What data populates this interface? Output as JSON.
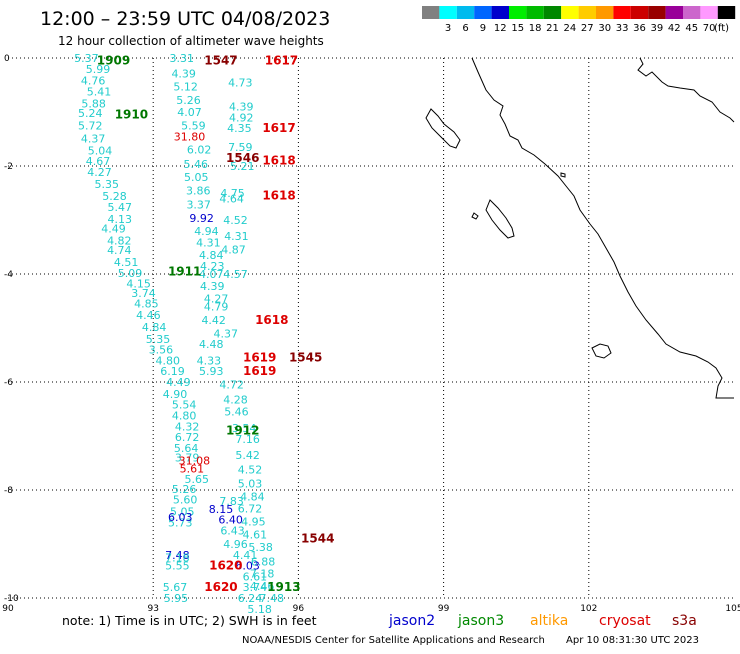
{
  "header": {
    "title": "12:00 – 23:59 UTC 04/08/2023",
    "subtitle": "12 hour collection of altimeter wave heights"
  },
  "legend": {
    "unit": "(ft)",
    "bins": [
      {
        "label": "",
        "color": "#808080"
      },
      {
        "label": "3",
        "color": "#00ffff"
      },
      {
        "label": "6",
        "color": "#00bbee"
      },
      {
        "label": "9",
        "color": "#0066ff"
      },
      {
        "label": "12",
        "color": "#0000cc"
      },
      {
        "label": "15",
        "color": "#00ee00"
      },
      {
        "label": "18",
        "color": "#00bb00"
      },
      {
        "label": "21",
        "color": "#008800"
      },
      {
        "label": "24",
        "color": "#ffff00"
      },
      {
        "label": "27",
        "color": "#ffcc00"
      },
      {
        "label": "30",
        "color": "#ff9900"
      },
      {
        "label": "33",
        "color": "#ff0000"
      },
      {
        "label": "36",
        "color": "#cc0000"
      },
      {
        "label": "39",
        "color": "#990000"
      },
      {
        "label": "42",
        "color": "#990099"
      },
      {
        "label": "45",
        "color": "#cc66cc"
      },
      {
        "label": "70",
        "color": "#ff99ff"
      },
      {
        "label": "",
        "color": "#000000"
      }
    ]
  },
  "axes": {
    "lon_ticks": [
      "90",
      "93",
      "96",
      "99",
      "102",
      "105"
    ],
    "lat_ticks": [
      "0",
      "-2",
      "-4",
      "-6",
      "-8",
      "-10"
    ]
  },
  "observations": [
    {
      "lon": 91.62,
      "lat": 0.0,
      "text": "5.37",
      "color": "#22cccc"
    },
    {
      "lon": 91.86,
      "lat": -0.2,
      "text": "5.99",
      "color": "#22cccc"
    },
    {
      "lon": 91.76,
      "lat": -0.42,
      "text": "4.76",
      "color": "#22cccc"
    },
    {
      "lon": 91.88,
      "lat": -0.62,
      "text": "5.41",
      "color": "#22cccc"
    },
    {
      "lon": 91.77,
      "lat": -0.84,
      "text": "5.88",
      "color": "#22cccc"
    },
    {
      "lon": 91.7,
      "lat": -1.02,
      "text": "5.24",
      "color": "#22cccc"
    },
    {
      "lon": 91.7,
      "lat": -1.25,
      "text": "5.72",
      "color": "#22cccc"
    },
    {
      "lon": 91.76,
      "lat": -1.49,
      "text": "4.37",
      "color": "#22cccc"
    },
    {
      "lon": 91.9,
      "lat": -1.71,
      "text": "5.04",
      "color": "#22cccc"
    },
    {
      "lon": 91.86,
      "lat": -1.91,
      "text": "4.67",
      "color": "#22cccc"
    },
    {
      "lon": 91.89,
      "lat": -2.11,
      "text": "4.27",
      "color": "#22cccc"
    },
    {
      "lon": 92.04,
      "lat": -2.33,
      "text": "5.35",
      "color": "#22cccc"
    },
    {
      "lon": 92.2,
      "lat": -2.56,
      "text": "5.28",
      "color": "#22cccc"
    },
    {
      "lon": 92.31,
      "lat": -2.76,
      "text": "5.47",
      "color": "#22cccc"
    },
    {
      "lon": 92.31,
      "lat": -2.98,
      "text": "4.13",
      "color": "#22cccc"
    },
    {
      "lon": 92.18,
      "lat": -3.16,
      "text": "4.49",
      "color": "#22cccc"
    },
    {
      "lon": 92.3,
      "lat": -3.38,
      "text": "4.82",
      "color": "#22cccc"
    },
    {
      "lon": 92.3,
      "lat": -3.56,
      "text": "4.74",
      "color": "#22cccc"
    },
    {
      "lon": 92.44,
      "lat": -3.78,
      "text": "4.51",
      "color": "#22cccc"
    },
    {
      "lon": 92.52,
      "lat": -3.98,
      "text": "5.09",
      "color": "#22cccc"
    },
    {
      "lon": 92.7,
      "lat": -4.18,
      "text": "4.15",
      "color": "#22cccc"
    },
    {
      "lon": 92.8,
      "lat": -4.35,
      "text": "3.74",
      "color": "#22cccc"
    },
    {
      "lon": 92.86,
      "lat": -4.55,
      "text": "4.85",
      "color": "#22cccc"
    },
    {
      "lon": 92.9,
      "lat": -4.76,
      "text": "4.46",
      "color": "#22cccc"
    },
    {
      "lon": 93.02,
      "lat": -4.98,
      "text": "4.84",
      "color": "#22cccc"
    },
    {
      "lon": 93.1,
      "lat": -5.2,
      "text": "5.35",
      "color": "#22cccc"
    },
    {
      "lon": 93.16,
      "lat": -5.4,
      "text": "3.56",
      "color": "#22cccc"
    },
    {
      "lon": 93.3,
      "lat": -5.6,
      "text": "4.80",
      "color": "#22cccc"
    },
    {
      "lon": 93.4,
      "lat": -5.8,
      "text": "6.19",
      "color": "#22cccc"
    },
    {
      "lon": 93.52,
      "lat": -6.0,
      "text": "4.49",
      "color": "#22cccc"
    },
    {
      "lon": 93.45,
      "lat": -6.22,
      "text": "4.90",
      "color": "#22cccc"
    },
    {
      "lon": 93.64,
      "lat": -6.42,
      "text": "5.54",
      "color": "#22cccc"
    },
    {
      "lon": 93.64,
      "lat": -6.62,
      "text": "4.80",
      "color": "#22cccc"
    },
    {
      "lon": 93.7,
      "lat": -6.82,
      "text": "4.32",
      "color": "#22cccc"
    },
    {
      "lon": 93.7,
      "lat": -7.02,
      "text": "6.72",
      "color": "#22cccc"
    },
    {
      "lon": 93.68,
      "lat": -7.22,
      "text": "5.64",
      "color": "#22cccc"
    },
    {
      "lon": 93.7,
      "lat": -7.4,
      "text": "3.79",
      "color": "#22cccc"
    },
    {
      "lon": 93.8,
      "lat": -7.6,
      "text": "5.61",
      "color": "#dd0000"
    },
    {
      "lon": 93.9,
      "lat": -7.8,
      "text": "5.65",
      "color": "#22cccc"
    },
    {
      "lon": 93.64,
      "lat": -7.98,
      "text": "5.26",
      "color": "#22cccc"
    },
    {
      "lon": 93.66,
      "lat": -8.18,
      "text": "5.60",
      "color": "#22cccc"
    },
    {
      "lon": 93.6,
      "lat": -8.4,
      "text": "5.05",
      "color": "#22cccc"
    },
    {
      "lon": 93.56,
      "lat": -8.6,
      "text": "5.73",
      "color": "#22cccc"
    },
    {
      "lon": 93.56,
      "lat": -8.5,
      "text": "6.03",
      "color": "#0000cc"
    },
    {
      "lon": 93.5,
      "lat": -9.2,
      "text": "7.48",
      "color": "#0000cc"
    },
    {
      "lon": 93.5,
      "lat": -9.25,
      "text": "7.18",
      "color": "#22cccc"
    },
    {
      "lon": 93.5,
      "lat": -9.4,
      "text": "5.55",
      "color": "#22cccc"
    },
    {
      "lon": 93.45,
      "lat": -9.8,
      "text": "5.67",
      "color": "#22cccc"
    },
    {
      "lon": 93.47,
      "lat": -10.0,
      "text": "5.95",
      "color": "#22cccc"
    },
    {
      "lon": 93.59,
      "lat": 0.0,
      "text": "3.31",
      "color": "#22cccc"
    },
    {
      "lon": 93.63,
      "lat": -0.29,
      "text": "4.39",
      "color": "#22cccc"
    },
    {
      "lon": 93.67,
      "lat": -0.53,
      "text": "5.12",
      "color": "#22cccc"
    },
    {
      "lon": 93.73,
      "lat": -0.78,
      "text": "5.26",
      "color": "#22cccc"
    },
    {
      "lon": 93.75,
      "lat": -1.0,
      "text": "4.07",
      "color": "#22cccc"
    },
    {
      "lon": 93.83,
      "lat": -1.25,
      "text": "5.59",
      "color": "#22cccc"
    },
    {
      "lon": 93.95,
      "lat": -1.69,
      "text": "6.02",
      "color": "#22cccc"
    },
    {
      "lon": 93.88,
      "lat": -1.96,
      "text": "5.46",
      "color": "#22cccc"
    },
    {
      "lon": 93.89,
      "lat": -2.2,
      "text": "5.05",
      "color": "#22cccc"
    },
    {
      "lon": 93.93,
      "lat": -2.45,
      "text": "3.86",
      "color": "#22cccc"
    },
    {
      "lon": 93.94,
      "lat": -2.71,
      "text": "3.37",
      "color": "#22cccc"
    },
    {
      "lon": 94.0,
      "lat": -2.96,
      "text": "9.92",
      "color": "#0000cc"
    },
    {
      "lon": 94.1,
      "lat": -3.2,
      "text": "4.94",
      "color": "#22cccc"
    },
    {
      "lon": 94.14,
      "lat": -3.42,
      "text": "4.31",
      "color": "#22cccc"
    },
    {
      "lon": 94.2,
      "lat": -3.65,
      "text": "4.84",
      "color": "#22cccc"
    },
    {
      "lon": 94.22,
      "lat": -3.85,
      "text": "4.23",
      "color": "#22cccc"
    },
    {
      "lon": 94.2,
      "lat": -4.0,
      "text": "4.07",
      "color": "#22cccc"
    },
    {
      "lon": 94.22,
      "lat": -4.22,
      "text": "4.39",
      "color": "#22cccc"
    },
    {
      "lon": 94.3,
      "lat": -4.45,
      "text": "4.27",
      "color": "#22cccc"
    },
    {
      "lon": 94.3,
      "lat": -4.6,
      "text": "4.79",
      "color": "#22cccc"
    },
    {
      "lon": 94.25,
      "lat": -4.85,
      "text": "4.42",
      "color": "#22cccc"
    },
    {
      "lon": 94.5,
      "lat": -5.1,
      "text": "4.37",
      "color": "#22cccc"
    },
    {
      "lon": 94.2,
      "lat": -5.3,
      "text": "4.48",
      "color": "#22cccc"
    },
    {
      "lon": 94.15,
      "lat": -5.6,
      "text": "4.33",
      "color": "#22cccc"
    },
    {
      "lon": 94.2,
      "lat": -5.8,
      "text": "5.93",
      "color": "#22cccc"
    },
    {
      "lon": 94.62,
      "lat": -6.05,
      "text": "4.72",
      "color": "#22cccc"
    },
    {
      "lon": 94.7,
      "lat": -6.32,
      "text": "4.28",
      "color": "#22cccc"
    },
    {
      "lon": 94.72,
      "lat": -6.55,
      "text": "5.46",
      "color": "#22cccc"
    },
    {
      "lon": 94.88,
      "lat": -6.85,
      "text": "3.54",
      "color": "#22cccc"
    },
    {
      "lon": 94.95,
      "lat": -7.06,
      "text": "7.16",
      "color": "#22cccc"
    },
    {
      "lon": 94.95,
      "lat": -7.35,
      "text": "5.42",
      "color": "#22cccc"
    },
    {
      "lon": 95.0,
      "lat": -7.62,
      "text": "4.52",
      "color": "#22cccc"
    },
    {
      "lon": 95.0,
      "lat": -7.88,
      "text": "5.03",
      "color": "#22cccc"
    },
    {
      "lon": 95.05,
      "lat": -8.12,
      "text": "4.84",
      "color": "#22cccc"
    },
    {
      "lon": 95.0,
      "lat": -8.34,
      "text": "6.72",
      "color": "#22cccc"
    },
    {
      "lon": 95.07,
      "lat": -8.58,
      "text": "4.95",
      "color": "#22cccc"
    },
    {
      "lon": 95.1,
      "lat": -8.82,
      "text": "4.61",
      "color": "#22cccc"
    },
    {
      "lon": 95.22,
      "lat": -9.06,
      "text": "5.38",
      "color": "#22cccc"
    },
    {
      "lon": 95.27,
      "lat": -9.32,
      "text": "6.88",
      "color": "#22cccc"
    },
    {
      "lon": 95.25,
      "lat": -9.55,
      "text": "7.18",
      "color": "#22cccc"
    },
    {
      "lon": 95.25,
      "lat": -9.78,
      "text": "4.46",
      "color": "#22cccc"
    },
    {
      "lon": 95.45,
      "lat": -10.0,
      "text": "7.48",
      "color": "#22cccc"
    },
    {
      "lon": 94.62,
      "lat": -8.2,
      "text": "7.83",
      "color": "#22cccc"
    },
    {
      "lon": 94.4,
      "lat": -8.35,
      "text": "8.15",
      "color": "#0000cc"
    },
    {
      "lon": 94.6,
      "lat": -8.55,
      "text": "6.40",
      "color": "#0000cc"
    },
    {
      "lon": 94.64,
      "lat": -8.75,
      "text": "6.43",
      "color": "#22cccc"
    },
    {
      "lon": 94.7,
      "lat": -9.0,
      "text": "4.96",
      "color": "#22cccc"
    },
    {
      "lon": 94.9,
      "lat": -9.2,
      "text": "4.41",
      "color": "#22cccc"
    },
    {
      "lon": 94.95,
      "lat": -9.4,
      "text": "6.03",
      "color": "#0000cc"
    },
    {
      "lon": 95.1,
      "lat": -9.6,
      "text": "6.61",
      "color": "#22cccc"
    },
    {
      "lon": 95.1,
      "lat": -9.8,
      "text": "3.74",
      "color": "#22cccc"
    },
    {
      "lon": 95.0,
      "lat": -10.0,
      "text": "6.24",
      "color": "#22cccc"
    },
    {
      "lon": 95.2,
      "lat": -10.2,
      "text": "5.18",
      "color": "#22cccc"
    },
    {
      "lon": 94.8,
      "lat": -0.45,
      "text": "4.73",
      "color": "#22cccc"
    },
    {
      "lon": 94.82,
      "lat": -0.9,
      "text": "4.39",
      "color": "#22cccc"
    },
    {
      "lon": 94.82,
      "lat": -1.1,
      "text": "4.92",
      "color": "#22cccc"
    },
    {
      "lon": 94.78,
      "lat": -1.3,
      "text": "4.35",
      "color": "#22cccc"
    },
    {
      "lon": 94.8,
      "lat": -1.65,
      "text": "7.59",
      "color": "#22cccc"
    },
    {
      "lon": 94.84,
      "lat": -2.0,
      "text": "5.21",
      "color": "#22cccc"
    },
    {
      "lon": 94.64,
      "lat": -2.5,
      "text": "4.75",
      "color": "#22cccc"
    },
    {
      "lon": 94.62,
      "lat": -2.6,
      "text": "4.64",
      "color": "#22cccc"
    },
    {
      "lon": 94.7,
      "lat": -3.0,
      "text": "4.52",
      "color": "#22cccc"
    },
    {
      "lon": 94.72,
      "lat": -3.3,
      "text": "4.31",
      "color": "#22cccc"
    },
    {
      "lon": 94.66,
      "lat": -3.55,
      "text": "4.87",
      "color": "#22cccc"
    },
    {
      "lon": 94.7,
      "lat": -4.0,
      "text": "4.57",
      "color": "#22cccc"
    },
    {
      "lon": 93.75,
      "lat": -1.45,
      "text": "31.80",
      "color": "#dd0000"
    },
    {
      "lon": 93.85,
      "lat": -7.45,
      "text": "31.08",
      "color": "#dd0000"
    }
  ],
  "passes": [
    {
      "lon": 92.18,
      "lat": -0.05,
      "text": "1909",
      "color": "#007700"
    },
    {
      "lon": 92.55,
      "lat": -1.05,
      "text": "1910",
      "color": "#007700"
    },
    {
      "lon": 93.65,
      "lat": -3.95,
      "text": "1911",
      "color": "#007700"
    },
    {
      "lon": 94.85,
      "lat": -6.9,
      "text": "1912",
      "color": "#007700"
    },
    {
      "lon": 95.7,
      "lat": -9.8,
      "text": "1913",
      "color": "#007700"
    },
    {
      "lon": 94.4,
      "lat": -0.05,
      "text": "1547",
      "color": "#880000"
    },
    {
      "lon": 94.85,
      "lat": -1.85,
      "text": "1546",
      "color": "#880000"
    },
    {
      "lon": 96.15,
      "lat": -5.55,
      "text": "1545",
      "color": "#880000"
    },
    {
      "lon": 96.4,
      "lat": -8.9,
      "text": "1544",
      "color": "#880000"
    },
    {
      "lon": 95.65,
      "lat": -0.05,
      "text": "1617",
      "color": "#dd0000"
    },
    {
      "lon": 95.6,
      "lat": -1.3,
      "text": "1617",
      "color": "#dd0000"
    },
    {
      "lon": 95.6,
      "lat": -1.9,
      "text": "1618",
      "color": "#dd0000"
    },
    {
      "lon": 95.6,
      "lat": -2.55,
      "text": "1618",
      "color": "#dd0000"
    },
    {
      "lon": 95.45,
      "lat": -4.85,
      "text": "1618",
      "color": "#dd0000"
    },
    {
      "lon": 95.2,
      "lat": -5.55,
      "text": "1619",
      "color": "#dd0000"
    },
    {
      "lon": 95.2,
      "lat": -5.8,
      "text": "1619",
      "color": "#dd0000"
    },
    {
      "lon": 94.5,
      "lat": -9.4,
      "text": "1620",
      "color": "#dd0000"
    },
    {
      "lon": 94.4,
      "lat": -9.8,
      "text": "1620",
      "color": "#dd0000"
    }
  ],
  "footer": {
    "note": "note: 1) Time is in UTC; 2) SWH is in feet",
    "satellites": [
      {
        "name": "jason2",
        "color": "#0000cc"
      },
      {
        "name": "jason3",
        "color": "#008800"
      },
      {
        "name": "altika",
        "color": "#ff9900"
      },
      {
        "name": "cryosat",
        "color": "#dd0000"
      },
      {
        "name": "s3a",
        "color": "#880000"
      }
    ],
    "credit": "NOAA/NESDIS Center for Satellite Applications and Research",
    "generated": "Apr 10 08:31:30 UTC 2023"
  }
}
